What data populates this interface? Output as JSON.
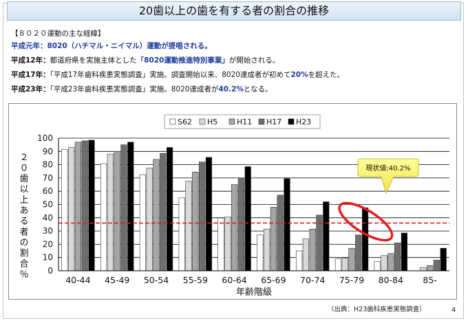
{
  "slide": {
    "title": "20歯以上の歯を有する者の割合の推移",
    "source": "（出典：H23歯科疾患実態調査）",
    "page_number": "4"
  },
  "timeline": {
    "heading": "【８０２０運動の主な経緯】",
    "rows": [
      {
        "era": "平成元年：",
        "segments": [
          {
            "text": "8020（ハチマル・ニイマル）運動",
            "style": "hl"
          },
          {
            "text": "が提唱される。",
            "style": "normal"
          }
        ]
      },
      {
        "era": "平成12年：",
        "segments": [
          {
            "text": "都道府県を実施主体とした",
            "style": "normal"
          },
          {
            "text": "「8020運動推進特別事業」",
            "style": "hl"
          },
          {
            "text": "が開始される。",
            "style": "normal"
          }
        ]
      },
      {
        "era": "平成17年：",
        "segments": [
          {
            "text": "「平成17年歯科疾患実態調査」実施。調査開始以来、8020達成者が初めて",
            "style": "normal"
          },
          {
            "text": "20%",
            "style": "hl"
          },
          {
            "text": "を超えた。",
            "style": "normal"
          }
        ]
      },
      {
        "era": "平成23年：",
        "segments": [
          {
            "text": "「平成23年歯科疾患実態調査」実施。8020達成者が",
            "style": "normal"
          },
          {
            "text": "40.2%",
            "style": "hl"
          },
          {
            "text": "となる。",
            "style": "normal"
          }
        ]
      }
    ]
  },
  "chart_data": {
    "type": "bar",
    "xlabel": "年齢階級",
    "ylabel": "２０歯以上ある者の割合％",
    "ylim": [
      0,
      100
    ],
    "yticks": [
      0,
      10,
      20,
      30,
      40,
      50,
      60,
      70,
      80,
      90,
      100
    ],
    "grid": true,
    "legend_position": "top",
    "categories": [
      "40-44",
      "45-49",
      "50-54",
      "55-59",
      "60-64",
      "65-69",
      "70-74",
      "75-79",
      "80-84",
      "85-"
    ],
    "series": [
      {
        "name": "S62",
        "color": "#ffffff",
        "values": [
          91.5,
          80.8,
          72.5,
          55.0,
          39.8,
          27.0,
          15.0,
          9.0,
          7.0,
          0.0
        ]
      },
      {
        "name": "H5",
        "color": "#d9d9d9",
        "values": [
          93.0,
          88.0,
          77.5,
          67.5,
          40.5,
          31.5,
          24.0,
          9.5,
          11.5,
          2.5
        ]
      },
      {
        "name": "H11",
        "color": "#a6a6a6",
        "values": [
          97.0,
          90.0,
          84.0,
          74.5,
          65.0,
          48.0,
          31.5,
          17.0,
          13.0,
          4.0
        ]
      },
      {
        "name": "H17",
        "color": "#6e6e6e",
        "values": [
          98.0,
          95.0,
          88.5,
          82.0,
          70.0,
          57.0,
          42.0,
          27.0,
          21.0,
          8.0
        ]
      },
      {
        "name": "H23",
        "color": "#000000",
        "values": [
          98.5,
          97.0,
          93.0,
          85.5,
          78.5,
          69.5,
          52.0,
          47.5,
          28.5,
          17.0
        ]
      }
    ],
    "reference_line": {
      "value": 36,
      "color": "#cc2222",
      "style": "dashed"
    },
    "annotation": {
      "text": "現状値:40.2%",
      "target_category": "80-84"
    }
  }
}
